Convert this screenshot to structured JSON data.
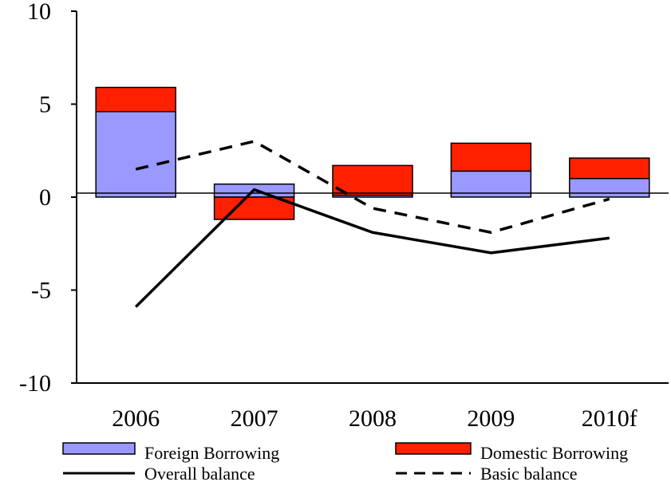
{
  "chart_data": {
    "type": "bar",
    "stacked": true,
    "categories": [
      "2006",
      "2007",
      "2008",
      "2009",
      "2010f"
    ],
    "ylim": [
      -10,
      10
    ],
    "yticks": [
      -10,
      -5,
      0,
      5,
      10
    ],
    "ytick_labels": [
      "-10",
      "-5",
      "0",
      "5",
      "10"
    ],
    "grid": false,
    "legend_position": "bottom",
    "series": [
      {
        "name": "Foreign Borrowing",
        "kind": "bar",
        "color": "#9999ff",
        "values": [
          4.6,
          0.7,
          0.1,
          1.4,
          1.0
        ]
      },
      {
        "name": "Domestic Borrowing",
        "kind": "bar",
        "color": "#ff2000",
        "values": [
          1.3,
          -1.2,
          1.6,
          1.5,
          1.1
        ]
      },
      {
        "name": "Overall balance",
        "kind": "line",
        "style": "solid",
        "color": "#000000",
        "values": [
          -5.9,
          0.4,
          -1.9,
          -3.0,
          -2.2
        ]
      },
      {
        "name": "Basic balance",
        "kind": "line",
        "style": "dashed",
        "color": "#000000",
        "values": [
          1.5,
          3.0,
          -0.6,
          -1.9,
          -0.1
        ]
      }
    ]
  }
}
